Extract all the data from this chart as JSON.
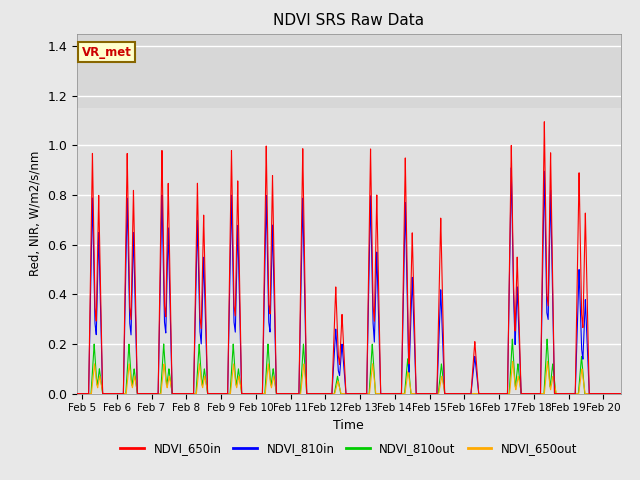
{
  "title": "NDVI SRS Raw Data",
  "ylabel": "Red, NIR, W/m2/s/nm",
  "xlabel": "Time",
  "xlim_days": [
    4.85,
    20.5
  ],
  "ylim": [
    0.0,
    1.45
  ],
  "yticks": [
    0.0,
    0.2,
    0.4,
    0.6,
    0.8,
    1.0,
    1.2,
    1.4
  ],
  "background_color": "#e8e8e8",
  "plot_bg_upper": "#dcdcdc",
  "plot_bg_lower": "#e8e8e8",
  "grid_color": "white",
  "annotation_text": "VR_met",
  "annotation_color": "#cc0000",
  "annotation_bg": "#ffffcc",
  "annotation_border": "#886600",
  "colors": {
    "NDVI_650in": "#ff0000",
    "NDVI_810in": "#0000ff",
    "NDVI_810out": "#00cc00",
    "NDVI_650out": "#ffaa00"
  },
  "legend_labels": [
    "NDVI_650in",
    "NDVI_810in",
    "NDVI_810out",
    "NDVI_650out"
  ],
  "xtick_labels": [
    "Feb 5",
    "Feb 6",
    "Feb 7",
    "Feb 8",
    "Feb 9",
    "Feb 10",
    "Feb 11",
    "Feb 12",
    "Feb 13",
    "Feb 14",
    "Feb 15",
    "Feb 16",
    "Feb 17",
    "Feb 18",
    "Feb 19",
    "Feb 20"
  ],
  "xtick_positions": [
    5,
    6,
    7,
    8,
    9,
    10,
    11,
    12,
    13,
    14,
    15,
    16,
    17,
    18,
    19,
    20
  ]
}
